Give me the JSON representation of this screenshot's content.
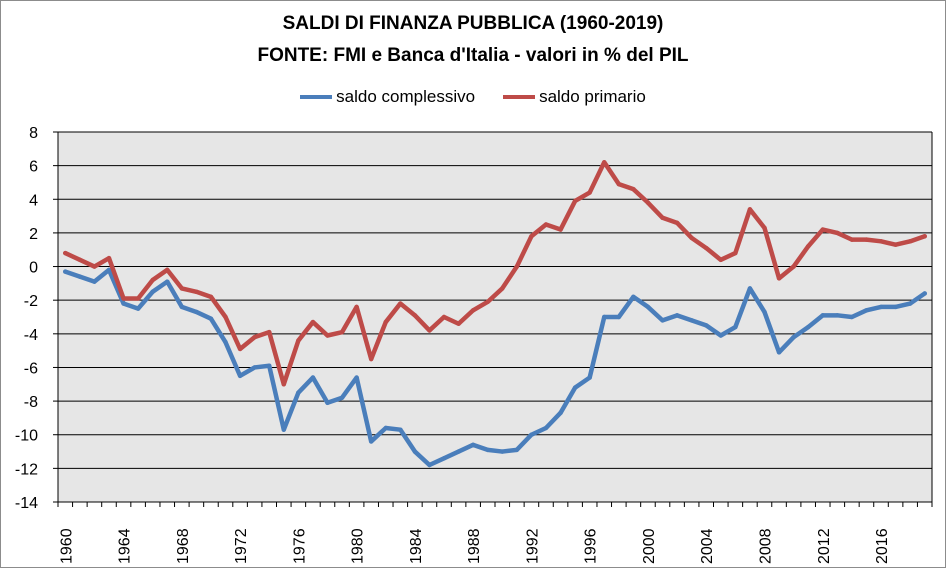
{
  "colors": {
    "saldo_complessivo": "#4a7ebb",
    "saldo_primario": "#be4b48",
    "plot_background": "#e6e6e6",
    "grid": "#000000"
  },
  "chart_data": {
    "type": "line",
    "title": "SALDI DI FINANZA PUBBLICA (1960-2019)",
    "subtitle": "FONTE: FMI e Banca d'Italia - valori in % del PIL",
    "xlabel": "",
    "ylabel": "",
    "ylim": [
      -14,
      8
    ],
    "yticks": [
      8,
      6,
      4,
      2,
      0,
      -2,
      -4,
      -6,
      -8,
      -10,
      -12,
      -14
    ],
    "xlim": [
      1960,
      2019
    ],
    "xticks": [
      "1960",
      "1964",
      "1968",
      "1972",
      "1976",
      "1980",
      "1984",
      "1988",
      "1992",
      "1996",
      "2000",
      "2004",
      "2008",
      "2012",
      "2016"
    ],
    "grid": true,
    "legend_position": "top",
    "x": [
      1960,
      1961,
      1962,
      1963,
      1964,
      1965,
      1966,
      1967,
      1968,
      1969,
      1970,
      1971,
      1972,
      1973,
      1974,
      1975,
      1976,
      1977,
      1978,
      1979,
      1980,
      1981,
      1982,
      1983,
      1984,
      1985,
      1986,
      1987,
      1988,
      1989,
      1990,
      1991,
      1992,
      1993,
      1994,
      1995,
      1996,
      1997,
      1998,
      1999,
      2000,
      2001,
      2002,
      2003,
      2004,
      2005,
      2006,
      2007,
      2008,
      2009,
      2010,
      2011,
      2012,
      2013,
      2014,
      2015,
      2016,
      2017,
      2018,
      2019
    ],
    "series": [
      {
        "name": "saldo complessivo",
        "color": "#4a7ebb",
        "values": [
          -0.3,
          -0.6,
          -0.9,
          -0.2,
          -2.2,
          -2.5,
          -1.5,
          -0.9,
          -2.4,
          -2.7,
          -3.1,
          -4.5,
          -6.5,
          -6.0,
          -5.9,
          -9.7,
          -7.5,
          -6.6,
          -8.1,
          -7.8,
          -6.6,
          -10.4,
          -9.6,
          -9.7,
          -11.0,
          -11.8,
          -11.4,
          -11.0,
          -10.6,
          -10.9,
          -11.0,
          -10.9,
          -10.0,
          -9.6,
          -8.7,
          -7.2,
          -6.6,
          -3.0,
          -3.0,
          -1.8,
          -2.4,
          -3.2,
          -2.9,
          -3.2,
          -3.5,
          -4.1,
          -3.6,
          -1.3,
          -2.7,
          -5.1,
          -4.2,
          -3.6,
          -2.9,
          -2.9,
          -3.0,
          -2.6,
          -2.4,
          -2.4,
          -2.2,
          -1.6
        ]
      },
      {
        "name": "saldo primario",
        "color": "#be4b48",
        "values": [
          0.8,
          0.4,
          0.0,
          0.5,
          -1.9,
          -1.9,
          -0.8,
          -0.2,
          -1.3,
          -1.5,
          -1.8,
          -3.0,
          -4.9,
          -4.2,
          -3.9,
          -7.0,
          -4.4,
          -3.3,
          -4.1,
          -3.9,
          -2.4,
          -5.5,
          -3.3,
          -2.2,
          -2.9,
          -3.8,
          -3.0,
          -3.4,
          -2.6,
          -2.1,
          -1.3,
          0.0,
          1.8,
          2.5,
          2.2,
          3.9,
          4.4,
          6.2,
          4.9,
          4.6,
          3.8,
          2.9,
          2.6,
          1.7,
          1.1,
          0.4,
          0.8,
          3.4,
          2.3,
          -0.7,
          0.0,
          1.2,
          2.2,
          2.0,
          1.6,
          1.6,
          1.5,
          1.3,
          1.5,
          1.8
        ]
      }
    ]
  }
}
